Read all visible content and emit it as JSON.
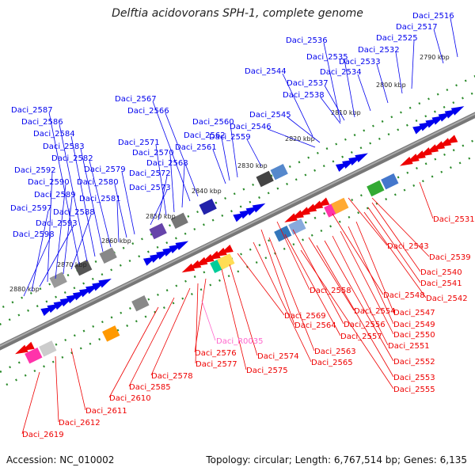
{
  "title": "Delftia acidovorans SPH-1, complete genome",
  "footer": {
    "accession": "Accession: NC_010002",
    "topology": "Topology: circular; Length: 6,767,514 bp; Genes: 6,135"
  },
  "colors": {
    "forward": "#0000ee",
    "reverse": "#ee0000",
    "rna": "#ff66cc",
    "backbone": "#777777",
    "tick": "#2a8a2a"
  },
  "ticks": [
    {
      "label": "2790 kbp"
    },
    {
      "label": "2800 kbp"
    },
    {
      "label": "2810 kbp"
    },
    {
      "label": "2820 kbp"
    },
    {
      "label": "2830 kbp"
    },
    {
      "label": "2840 kbp"
    },
    {
      "label": "2850 kbp"
    },
    {
      "label": "2860 kbp"
    },
    {
      "label": "2870 kbp"
    },
    {
      "label": "2880 kbp"
    }
  ],
  "forward_genes": [
    {
      "label": "Daci_2516"
    },
    {
      "label": "Daci_2517"
    },
    {
      "label": "Daci_2525"
    },
    {
      "label": "Daci_2532"
    },
    {
      "label": "Daci_2533"
    },
    {
      "label": "Daci_2534"
    },
    {
      "label": "Daci_2535"
    },
    {
      "label": "Daci_2536"
    },
    {
      "label": "Daci_2537"
    },
    {
      "label": "Daci_2538"
    },
    {
      "label": "Daci_2544"
    },
    {
      "label": "Daci_2545"
    },
    {
      "label": "Daci_2546"
    },
    {
      "label": "Daci_2559"
    },
    {
      "label": "Daci_2560"
    },
    {
      "label": "Daci_2561"
    },
    {
      "label": "Daci_2562"
    },
    {
      "label": "Daci_2566"
    },
    {
      "label": "Daci_2567"
    },
    {
      "label": "Daci_2568"
    },
    {
      "label": "Daci_2570"
    },
    {
      "label": "Daci_2571"
    },
    {
      "label": "Daci_2572"
    },
    {
      "label": "Daci_2573"
    },
    {
      "label": "Daci_2579"
    },
    {
      "label": "Daci_2580"
    },
    {
      "label": "Daci_2581"
    },
    {
      "label": "Daci_2582"
    },
    {
      "label": "Daci_2583"
    },
    {
      "label": "Daci_2584"
    },
    {
      "label": "Daci_2586"
    },
    {
      "label": "Daci_2587"
    },
    {
      "label": "Daci_2588"
    },
    {
      "label": "Daci_2589"
    },
    {
      "label": "Daci_2590"
    },
    {
      "label": "Daci_2592"
    },
    {
      "label": "Daci_2593"
    },
    {
      "label": "Daci_2597"
    },
    {
      "label": "Daci_2598"
    }
  ],
  "reverse_genes": [
    {
      "label": "Daci_2531"
    },
    {
      "label": "Daci_2539"
    },
    {
      "label": "Daci_2540"
    },
    {
      "label": "Daci_2541"
    },
    {
      "label": "Daci_2542"
    },
    {
      "label": "Daci_2543"
    },
    {
      "label": "Daci_2547"
    },
    {
      "label": "Daci_2548"
    },
    {
      "label": "Daci_2549"
    },
    {
      "label": "Daci_2550"
    },
    {
      "label": "Daci_2551"
    },
    {
      "label": "Daci_2552"
    },
    {
      "label": "Daci_2553"
    },
    {
      "label": "Daci_2554"
    },
    {
      "label": "Daci_2555"
    },
    {
      "label": "Daci_2556"
    },
    {
      "label": "Daci_2557"
    },
    {
      "label": "Daci_2558"
    },
    {
      "label": "Daci_2563"
    },
    {
      "label": "Daci_2564"
    },
    {
      "label": "Daci_2565"
    },
    {
      "label": "Daci_2569"
    },
    {
      "label": "Daci_2574"
    },
    {
      "label": "Daci_2575"
    },
    {
      "label": "Daci_2576"
    },
    {
      "label": "Daci_2577"
    },
    {
      "label": "Daci_2578"
    },
    {
      "label": "Daci_2585"
    },
    {
      "label": "Daci_2610"
    },
    {
      "label": "Daci_2611"
    },
    {
      "label": "Daci_2612"
    },
    {
      "label": "Daci_2619"
    }
  ],
  "rna_genes": [
    {
      "label": "Daci_R0035"
    }
  ]
}
